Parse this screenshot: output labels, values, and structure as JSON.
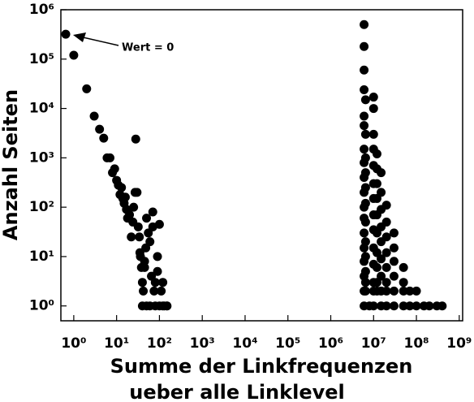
{
  "chart_data": {
    "type": "scatter",
    "xlabel": [
      "Summe der Linkfrequenzen",
      "ueber alle Linklevel"
    ],
    "ylabel": "Anzahl Seiten",
    "annotation": "Wert = 0",
    "log_x": true,
    "log_y": true,
    "color": "#000000",
    "xlim": [
      0.5,
      1200000000.0
    ],
    "ylim": [
      0.5,
      1000000.0
    ],
    "xticks": [
      {
        "value": 1,
        "label": "10⁰"
      },
      {
        "value": 10,
        "label": "10¹"
      },
      {
        "value": 100,
        "label": "10²"
      },
      {
        "value": 1000,
        "label": "10³"
      },
      {
        "value": 10000,
        "label": "10⁴"
      },
      {
        "value": 100000,
        "label": "10⁵"
      },
      {
        "value": 1000000,
        "label": "10⁶"
      },
      {
        "value": 10000000,
        "label": "10⁷"
      },
      {
        "value": 100000000,
        "label": "10⁸"
      },
      {
        "value": 1000000000,
        "label": "10⁹"
      }
    ],
    "yticks": [
      {
        "value": 1,
        "label": "10⁰"
      },
      {
        "value": 10,
        "label": "10¹"
      },
      {
        "value": 100,
        "label": "10²"
      },
      {
        "value": 1000,
        "label": "10³"
      },
      {
        "value": 10000,
        "label": "10⁴"
      },
      {
        "value": 100000,
        "label": "10⁵"
      },
      {
        "value": 1000000,
        "label": "10⁶"
      }
    ],
    "x": [
      0.65,
      1,
      2,
      3,
      4,
      5,
      6,
      7,
      8,
      9,
      10,
      11,
      12,
      13,
      14,
      15,
      16,
      17,
      18,
      20,
      22,
      24,
      25,
      27,
      28,
      30,
      32,
      34,
      36,
      38,
      40,
      42,
      45,
      48,
      50,
      55,
      60,
      65,
      70,
      75,
      80,
      90,
      100,
      110,
      120,
      130,
      150,
      40,
      50,
      60,
      80,
      100,
      120,
      150,
      35,
      45,
      70,
      90,
      6000000.0,
      6000000.0,
      6000000.0,
      6000000.0,
      6000000.0,
      6000000.0,
      6000000.0,
      6000000.0,
      6000000.0,
      6000000.0,
      6000000.0,
      6000000.0,
      6000000.0,
      6000000.0,
      6000000.0,
      6000000.0,
      6000000.0,
      6500000.0,
      6500000.0,
      6500000.0,
      6500000.0,
      6500000.0,
      6500000.0,
      6500000.0,
      6500000.0,
      6500000.0,
      6500000.0,
      6500000.0,
      6500000.0,
      10000000.0,
      10000000.0,
      10000000.0,
      10000000.0,
      10000000.0,
      10000000.0,
      10000000.0,
      10000000.0,
      10000000.0,
      10000000.0,
      10000000.0,
      10000000.0,
      10000000.0,
      12000000.0,
      12000000.0,
      12000000.0,
      12000000.0,
      12000000.0,
      12000000.0,
      12000000.0,
      12000000.0,
      12000000.0,
      12000000.0,
      15000000.0,
      15000000.0,
      15000000.0,
      15000000.0,
      15000000.0,
      15000000.0,
      15000000.0,
      15000000.0,
      20000000.0,
      20000000.0,
      20000000.0,
      20000000.0,
      20000000.0,
      20000000.0,
      20000000.0,
      30000000.0,
      30000000.0,
      30000000.0,
      30000000.0,
      30000000.0,
      50000000.0,
      50000000.0,
      50000000.0,
      70000000.0,
      100000000.0,
      6000000.0,
      8000000.0,
      10000000.0,
      15000000.0,
      20000000.0,
      30000000.0,
      50000000.0,
      70000000.0,
      100000000.0,
      150000000.0,
      200000000.0,
      300000000.0,
      400000000.0
    ],
    "values": [
      320000.0,
      120000.0,
      25000.0,
      7000,
      3800,
      2500,
      1000,
      1000,
      500,
      600,
      350,
      280,
      180,
      250,
      150,
      120,
      160,
      90,
      60,
      70,
      25,
      50,
      100,
      200,
      2400,
      200,
      40,
      25,
      10,
      6,
      3,
      2,
      8,
      15,
      60,
      30,
      20,
      4,
      80,
      2,
      3,
      10,
      45,
      2,
      3,
      1,
      1,
      1,
      1,
      1,
      1,
      1,
      1,
      1,
      12,
      6,
      40,
      5,
      500000.0,
      180000.0,
      60000.0,
      24000.0,
      7000,
      4500,
      1500,
      800,
      400,
      200,
      100,
      60,
      30,
      15,
      8,
      4,
      2,
      15000.0,
      3000,
      1000,
      500,
      250,
      120,
      50,
      20,
      10,
      5,
      3,
      2,
      17000.0,
      10000.0,
      3000,
      1500,
      700,
      300,
      150,
      70,
      35,
      15,
      7,
      3,
      2,
      1200,
      600,
      300,
      150,
      70,
      30,
      12,
      6,
      3,
      2,
      500,
      200,
      90,
      40,
      20,
      9,
      4,
      2,
      110,
      50,
      25,
      12,
      6,
      3,
      2,
      30,
      15,
      8,
      4,
      2,
      6,
      3,
      2,
      2,
      2,
      1,
      1,
      1,
      1,
      1,
      1,
      1,
      1,
      1,
      1,
      1,
      1,
      1
    ]
  }
}
